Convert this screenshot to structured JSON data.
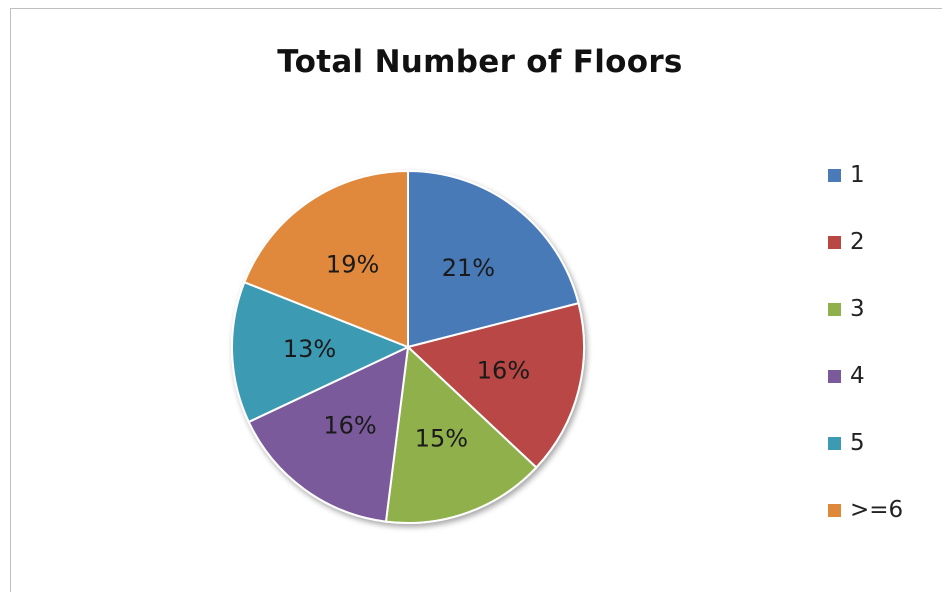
{
  "chart_data": {
    "type": "pie",
    "title": "Total Number of Floors",
    "categories": [
      "1",
      "2",
      "3",
      "4",
      "5",
      ">=6"
    ],
    "values": [
      21,
      16,
      15,
      16,
      13,
      19
    ],
    "data_labels": [
      "21%",
      "16%",
      "15%",
      "16%",
      "13%",
      "19%"
    ],
    "colors": [
      "#4a7ab8",
      "#b94744",
      "#8fb04c",
      "#7a5a9b",
      "#3d9ab3",
      "#e0883a"
    ],
    "legend_position": "right",
    "start_angle_deg": 0,
    "direction": "clockwise"
  }
}
